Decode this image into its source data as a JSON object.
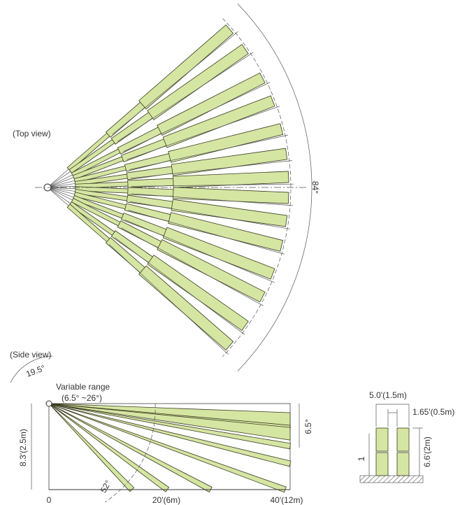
{
  "top_view": {
    "label": "(Top view)",
    "angle_label": "84°"
  },
  "side_view": {
    "label": "(Side view)",
    "tilt_label": "19.5°",
    "range_title": "Variable range",
    "range_values": "(6.5° ~26°)",
    "height_label": "8.3'(2.5m)",
    "x_labels": [
      "0",
      "20'(6m)",
      "40'(12m)"
    ],
    "down_angle": "52°",
    "spread_angle": "6.5°"
  },
  "detail": {
    "width_label": "5.0'(1.5m)",
    "gap_label": "1.65'(0.5m)",
    "height_label": "6.6'(2m)",
    "marker": "1"
  }
}
